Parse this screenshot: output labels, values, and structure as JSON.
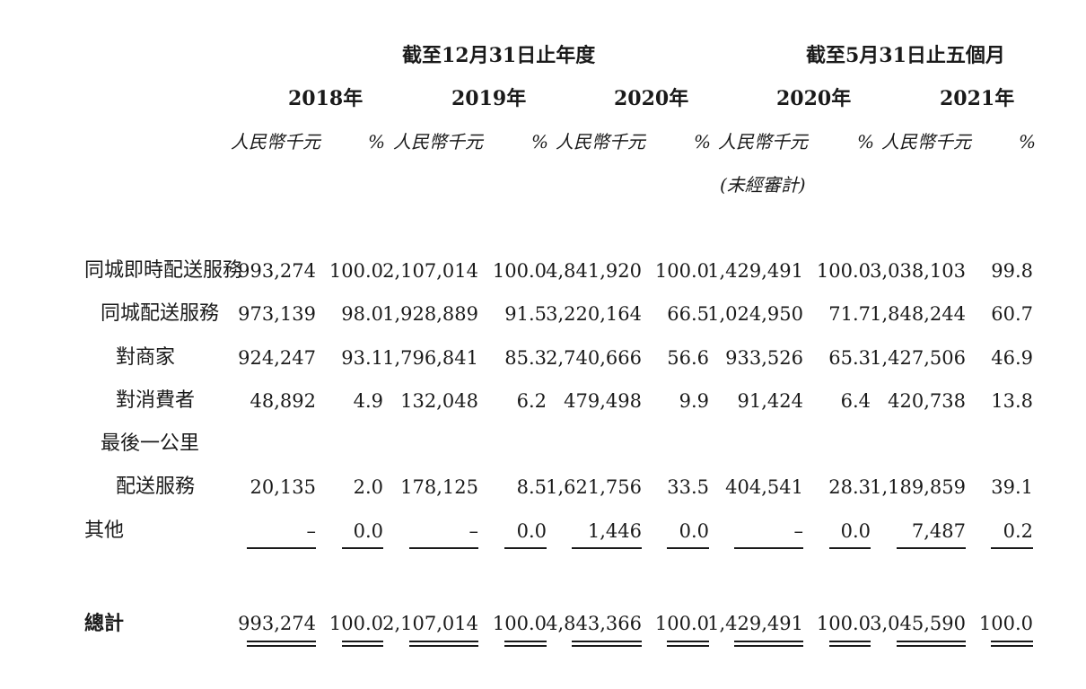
{
  "header": {
    "group1": "截至12月31日止年度",
    "group2": "截至5月31日止五個月",
    "years": [
      "2018年",
      "2019年",
      "2020年",
      "2020年",
      "2021年"
    ],
    "amount_unit": "人民幣千元",
    "pct_unit": "%",
    "unaudited": "(未經審計)"
  },
  "rows": [
    {
      "label": "同城即時配送服務",
      "values": [
        "993,274",
        "100.0",
        "2,107,014",
        "100.0",
        "4,841,920",
        "100.0",
        "1,429,491",
        "100.0",
        "3,038,103",
        "99.8"
      ]
    },
    {
      "label": "同城配送服務",
      "values": [
        "973,139",
        "98.0",
        "1,928,889",
        "91.5",
        "3,220,164",
        "66.5",
        "1,024,950",
        "71.7",
        "1,848,244",
        "60.7"
      ]
    },
    {
      "label": "對商家",
      "values": [
        "924,247",
        "93.1",
        "1,796,841",
        "85.3",
        "2,740,666",
        "56.6",
        "933,526",
        "65.3",
        "1,427,506",
        "46.9"
      ]
    },
    {
      "label": "對消費者",
      "values": [
        "48,892",
        "4.9",
        "132,048",
        "6.2",
        "479,498",
        "9.9",
        "91,424",
        "6.4",
        "420,738",
        "13.8"
      ]
    },
    {
      "label": "最後一公里",
      "values": []
    },
    {
      "label": "配送服務",
      "values": [
        "20,135",
        "2.0",
        "178,125",
        "8.5",
        "1,621,756",
        "33.5",
        "404,541",
        "28.3",
        "1,189,859",
        "39.1"
      ]
    },
    {
      "label": "其他",
      "values": [
        "–",
        "0.0",
        "–",
        "0.0",
        "1,446",
        "0.0",
        "–",
        "0.0",
        "7,487",
        "0.2"
      ]
    }
  ],
  "total": {
    "label": "總計",
    "values": [
      "993,274",
      "100.0",
      "2,107,014",
      "100.0",
      "4,843,366",
      "100.0",
      "1,429,491",
      "100.0",
      "3,045,590",
      "100.0"
    ]
  }
}
